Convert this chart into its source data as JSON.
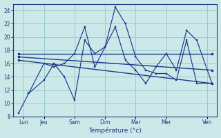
{
  "xlabel": "Température (°c)",
  "background_color": "#cce8e8",
  "grid_color": "#99cccc",
  "line_color": "#1a3a8a",
  "ylim": [
    8,
    25
  ],
  "yticks": [
    8,
    10,
    12,
    14,
    16,
    18,
    20,
    22,
    24
  ],
  "xlim": [
    0,
    20
  ],
  "day_labels": [
    "Lun",
    "Jeu",
    "Sam",
    "Dim",
    "Mar",
    "Mer",
    "Ven"
  ],
  "day_positions": [
    1,
    3,
    6,
    9,
    12,
    15,
    19
  ],
  "series_zigzag1": {
    "x": [
      0.5,
      1.5,
      3,
      4,
      5,
      6,
      7,
      8,
      9,
      10,
      11,
      12,
      13,
      14,
      15,
      16,
      17,
      18,
      19.5
    ],
    "y": [
      8.5,
      11.5,
      13.5,
      16.0,
      14.0,
      10.5,
      19.5,
      17.5,
      18.5,
      24.5,
      22.0,
      17.0,
      15.0,
      14.5,
      14.5,
      13.5,
      19.5,
      13.0,
      13.0
    ]
  },
  "series_zigzag2": {
    "x": [
      1.5,
      3,
      4,
      5,
      6,
      7,
      8,
      9,
      10,
      11,
      12,
      13,
      14,
      15,
      16,
      17,
      18,
      19.5
    ],
    "y": [
      11.5,
      16.0,
      15.5,
      16.0,
      17.5,
      21.5,
      15.5,
      18.5,
      21.5,
      16.5,
      15.0,
      13.0,
      15.5,
      17.5,
      15.0,
      21.0,
      19.5,
      13.0
    ]
  },
  "series_flat": {
    "x": [
      0.5,
      19.5
    ],
    "y": [
      17.5,
      17.5
    ]
  },
  "series_slope1": {
    "x": [
      0.5,
      19.5
    ],
    "y": [
      17.0,
      15.0
    ]
  },
  "series_slope2": {
    "x": [
      0.5,
      19.5
    ],
    "y": [
      16.5,
      13.0
    ]
  }
}
